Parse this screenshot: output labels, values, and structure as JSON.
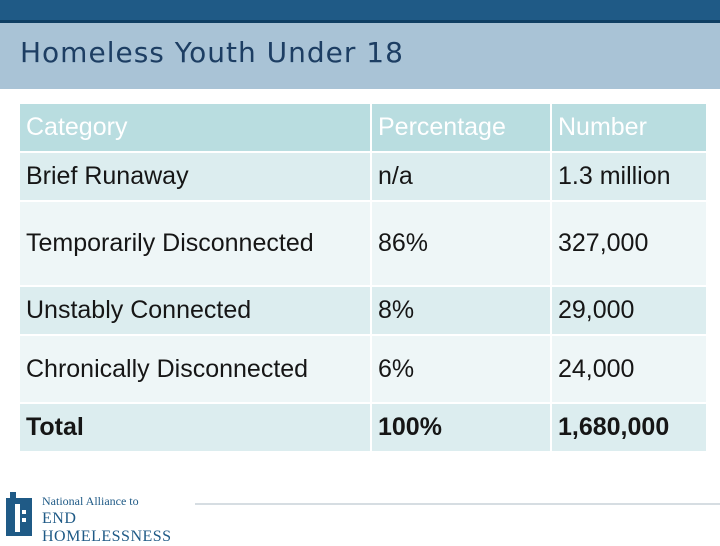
{
  "slide": {
    "title": "Homeless Youth Under 18"
  },
  "table": {
    "headers": [
      "Category",
      "Percentage",
      "Number"
    ],
    "rows": [
      [
        "Brief Runaway",
        "n/a",
        "1.3 million"
      ],
      [
        "Temporarily Disconnected",
        "86%",
        "327,000"
      ],
      [
        "Unstably Connected",
        "8%",
        "29,000"
      ],
      [
        "Chronically Disconnected",
        "6%",
        "24,000"
      ],
      [
        "Total",
        "100%",
        "1,680,000"
      ]
    ]
  },
  "logo": {
    "line1": "National Alliance to",
    "line2": "END HOMELESSNESS"
  },
  "colors": {
    "header_bar": "#1f5a86",
    "title_band": "#a9c3d6",
    "table_header": "#b9dde0",
    "row_shade": "#dcedef",
    "row_light": "#eef6f7"
  }
}
